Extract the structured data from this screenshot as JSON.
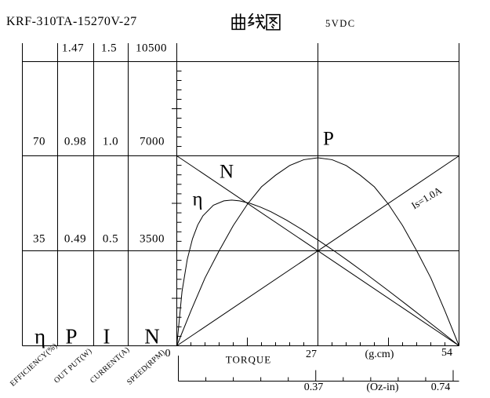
{
  "header": {
    "model": "KRF-310TA-15270V-27",
    "title_cn": "曲线图",
    "voltage": "5VDC"
  },
  "left_table": {
    "columns": [
      {
        "symbol": "η",
        "axis_name": "EFFICIENCY(%)",
        "values": [
          "",
          "70",
          "35"
        ]
      },
      {
        "symbol": "P",
        "axis_name": "OUT PUT(W)",
        "values": [
          "1.47",
          "0.98",
          "0.49"
        ]
      },
      {
        "symbol": "I",
        "axis_name": "CURRENT(A)",
        "values": [
          "1.5",
          "1.0",
          "0.5"
        ]
      },
      {
        "symbol": "N",
        "axis_name": "SPEED(RPM)",
        "values": [
          "10500",
          "7000",
          "3500"
        ]
      }
    ]
  },
  "x_axis": {
    "label": "TORQUE",
    "unit_primary": "(g.cm)",
    "unit_secondary": "(Oz-in)",
    "tick_zero": "0",
    "ticks_primary": [
      "27",
      "54"
    ],
    "ticks_secondary": [
      "0.37",
      "0.74"
    ]
  },
  "curve_labels": {
    "speed": "N",
    "power": "P",
    "efficiency": "η",
    "current": "Is=1.0A"
  },
  "colors": {
    "ink": "#000000",
    "background": "#ffffff"
  },
  "chart_data": {
    "type": "line",
    "title": "曲线图",
    "subtitle_left": "KRF-310TA-15270V-27",
    "subtitle_right": "5VDC",
    "xlabel": "TORQUE (g.cm)",
    "xlabel_secondary": "TORQUE (Oz-in)",
    "xlim_gcm": [
      0,
      54
    ],
    "xlim_ozin": [
      0,
      0.74
    ],
    "x_ticks_gcm": [
      0,
      27,
      54
    ],
    "x_ticks_ozin": [
      0.37,
      0.74
    ],
    "grid": "on",
    "y_axes": [
      {
        "symbol": "η",
        "name": "EFFICIENCY(%)",
        "tick_values": [
          35,
          70
        ]
      },
      {
        "symbol": "P",
        "name": "OUT PUT(W)",
        "tick_values": [
          0.49,
          0.98,
          1.47
        ]
      },
      {
        "symbol": "I",
        "name": "CURRENT(A)",
        "tick_values": [
          0.5,
          1.0,
          1.5
        ]
      },
      {
        "symbol": "N",
        "name": "SPEED(RPM)",
        "tick_values": [
          3500,
          7000,
          10500
        ]
      }
    ],
    "series": [
      {
        "id": "speed",
        "name": "N",
        "quantity": "SPEED(RPM)",
        "points": [
          [
            0,
            7000
          ],
          [
            54,
            0
          ]
        ]
      },
      {
        "id": "current",
        "name": "Is=1.0A",
        "quantity": "CURRENT(A)",
        "points": [
          [
            0,
            0
          ],
          [
            54,
            1.0
          ]
        ]
      },
      {
        "id": "power",
        "name": "P",
        "quantity": "OUT PUT(W)",
        "points": [
          [
            0,
            0
          ],
          [
            2.7,
            0.18
          ],
          [
            5.4,
            0.35
          ],
          [
            8.1,
            0.49
          ],
          [
            10.8,
            0.62
          ],
          [
            13.5,
            0.73
          ],
          [
            16.2,
            0.82
          ],
          [
            18.9,
            0.88
          ],
          [
            21.6,
            0.93
          ],
          [
            24.3,
            0.96
          ],
          [
            27,
            0.97
          ],
          [
            29.7,
            0.96
          ],
          [
            32.4,
            0.93
          ],
          [
            35.1,
            0.88
          ],
          [
            37.8,
            0.82
          ],
          [
            40.5,
            0.73
          ],
          [
            43.2,
            0.62
          ],
          [
            45.9,
            0.49
          ],
          [
            48.6,
            0.35
          ],
          [
            51.3,
            0.18
          ],
          [
            54,
            0
          ]
        ]
      },
      {
        "id": "efficiency",
        "name": "η",
        "quantity": "EFFICIENCY(%)",
        "points": [
          [
            0,
            0
          ],
          [
            1,
            20
          ],
          [
            2,
            31.8
          ],
          [
            3,
            39.4
          ],
          [
            4,
            44.5
          ],
          [
            5,
            47.9
          ],
          [
            7,
            51.8
          ],
          [
            9,
            53.4
          ],
          [
            10.5,
            53.7
          ],
          [
            12,
            53.4
          ],
          [
            14,
            52.5
          ],
          [
            16,
            51.1
          ],
          [
            18,
            49.4
          ],
          [
            21,
            46.3
          ],
          [
            24,
            42.8
          ],
          [
            27,
            39
          ],
          [
            30,
            35.1
          ],
          [
            33,
            31
          ],
          [
            36,
            26.8
          ],
          [
            40,
            21
          ],
          [
            44,
            15.1
          ],
          [
            48,
            9.1
          ],
          [
            51,
            4.6
          ],
          [
            54,
            0
          ]
        ]
      }
    ],
    "annotations": [
      {
        "text": "Is=1.0A",
        "attached_to": "current"
      }
    ]
  }
}
